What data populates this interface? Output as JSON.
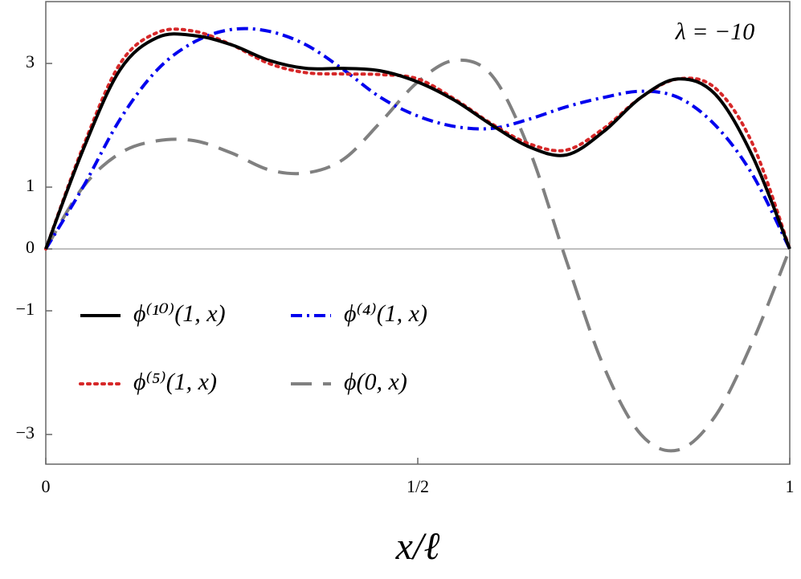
{
  "chart_data": {
    "type": "line",
    "annotation": "λ = −10",
    "x_label": "x/ℓ",
    "x": [
      0,
      0.05,
      0.1,
      0.15,
      0.2,
      0.25,
      0.3,
      0.35,
      0.4,
      0.45,
      0.5,
      0.55,
      0.6,
      0.65,
      0.7,
      0.75,
      0.8,
      0.85,
      0.9,
      0.95,
      1
    ],
    "series": [
      {
        "name": "ϕ⁽¹⁰⁾(1, x)",
        "color": "#000000",
        "dash": "solid",
        "values": [
          0,
          1.6,
          2.9,
          3.42,
          3.45,
          3.3,
          3.05,
          2.92,
          2.92,
          2.88,
          2.7,
          2.4,
          2.0,
          1.65,
          1.52,
          1.9,
          2.45,
          2.75,
          2.5,
          1.5,
          0
        ]
      },
      {
        "name": "ϕ⁽⁴⁾(1, x)",
        "color": "#0000ee",
        "dash": "dashdot",
        "values": [
          0,
          1.0,
          2.1,
          2.9,
          3.35,
          3.55,
          3.52,
          3.3,
          2.9,
          2.45,
          2.15,
          1.98,
          1.95,
          2.1,
          2.3,
          2.45,
          2.55,
          2.45,
          2.0,
          1.2,
          0
        ]
      },
      {
        "name": "ϕ⁽⁵⁾(1, x)",
        "color": "#d62728",
        "dash": "dotted",
        "values": [
          0,
          1.65,
          3.0,
          3.5,
          3.52,
          3.3,
          3.0,
          2.85,
          2.83,
          2.82,
          2.75,
          2.42,
          2.02,
          1.7,
          1.6,
          1.95,
          2.45,
          2.75,
          2.6,
          1.7,
          0
        ]
      },
      {
        "name": "ϕ(0, x)",
        "color": "#808080",
        "dash": "dashed",
        "values": [
          0,
          1.0,
          1.55,
          1.75,
          1.75,
          1.55,
          1.28,
          1.23,
          1.45,
          2.05,
          2.7,
          3.05,
          2.8,
          1.6,
          -0.2,
          -1.9,
          -3.0,
          -3.25,
          -2.7,
          -1.5,
          0
        ]
      }
    ],
    "xlim": [
      0,
      1
    ],
    "ylim": [
      -3.48,
      4
    ],
    "xticks": [
      0,
      {
        "value": 0.5,
        "label": "1/2"
      },
      1
    ],
    "yticks": [
      {
        "value": -3,
        "label": "−3"
      },
      {
        "value": -1,
        "label": "−1"
      },
      0,
      1,
      3
    ],
    "zero_line": true
  }
}
